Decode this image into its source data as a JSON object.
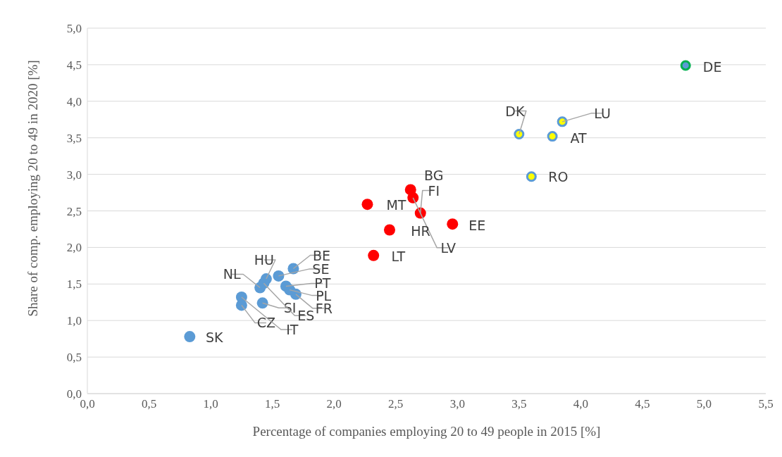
{
  "chart_data": {
    "type": "scatter",
    "xlabel": "Percentage of companies employing 20 to 49 people in 2015 [%]",
    "ylabel": "Share of comp. employing 20 to 49 in 2020 [%]",
    "xlim": [
      0,
      5.5
    ],
    "ylim": [
      0,
      5
    ],
    "xticks": [
      {
        "value": 0,
        "label": "0,0"
      },
      {
        "value": 0.5,
        "label": "0,5"
      },
      {
        "value": 1,
        "label": "1,0"
      },
      {
        "value": 1.5,
        "label": "1,5"
      },
      {
        "value": 2,
        "label": "2,0"
      },
      {
        "value": 2.5,
        "label": "2,5"
      },
      {
        "value": 3,
        "label": "3,0"
      },
      {
        "value": 3.5,
        "label": "3,5"
      },
      {
        "value": 4,
        "label": "4,0"
      },
      {
        "value": 4.5,
        "label": "4,5"
      },
      {
        "value": 5,
        "label": "5,0"
      },
      {
        "value": 5.5,
        "label": "5,5"
      }
    ],
    "yticks": [
      {
        "value": 0,
        "label": "0,0"
      },
      {
        "value": 0.5,
        "label": "0,5"
      },
      {
        "value": 1,
        "label": "1,0"
      },
      {
        "value": 1.5,
        "label": "1,5"
      },
      {
        "value": 2,
        "label": "2,0"
      },
      {
        "value": 2.5,
        "label": "2,5"
      },
      {
        "value": 3,
        "label": "3,0"
      },
      {
        "value": 3.5,
        "label": "3,5"
      },
      {
        "value": 4,
        "label": "4,0"
      },
      {
        "value": 4.5,
        "label": "4,5"
      },
      {
        "value": 5,
        "label": "5,0"
      }
    ],
    "grid": "y",
    "legend": false,
    "marker": "circle",
    "series": [
      {
        "color": "#5b9bd5",
        "x": [
          0.83,
          1.25,
          1.25,
          1.4,
          1.42,
          1.45,
          1.55,
          1.67,
          1.61,
          1.64,
          1.69,
          1.43
        ],
        "values": [
          0.78,
          1.21,
          1.32,
          1.45,
          1.24,
          1.57,
          1.61,
          1.71,
          1.47,
          1.42,
          1.36,
          1.51
        ]
      },
      {
        "color": "#ff0000",
        "x": [
          2.27,
          2.62,
          2.64,
          2.7,
          2.45,
          2.96,
          2.32
        ],
        "values": [
          2.59,
          2.79,
          2.68,
          2.47,
          2.24,
          2.32,
          1.89
        ]
      },
      {
        "color": "#ffff00",
        "x": [
          3.5,
          3.85,
          3.77,
          3.6
        ],
        "values": [
          3.55,
          3.72,
          3.52,
          2.97
        ]
      },
      {
        "color": "#5b9bd5",
        "x": [
          4.85
        ],
        "values": [
          4.49
        ]
      }
    ],
    "annotations": [
      {
        "text": "SK",
        "x": 0.83,
        "y": 0.78
      },
      {
        "text": "CZ",
        "x": 1.25,
        "y": 1.21
      },
      {
        "text": "IT",
        "x": 1.25,
        "y": 1.32
      },
      {
        "text": "NL",
        "x": 1.4,
        "y": 1.45
      },
      {
        "text": "SI",
        "x": 1.42,
        "y": 1.24
      },
      {
        "text": "HU",
        "x": 1.45,
        "y": 1.57
      },
      {
        "text": "SE",
        "x": 1.55,
        "y": 1.61
      },
      {
        "text": "BE",
        "x": 1.67,
        "y": 1.71
      },
      {
        "text": "PT",
        "x": 1.61,
        "y": 1.47
      },
      {
        "text": "PL",
        "x": 1.64,
        "y": 1.42
      },
      {
        "text": "FR",
        "x": 1.69,
        "y": 1.36
      },
      {
        "text": "ES",
        "x": 1.43,
        "y": 1.51
      },
      {
        "text": "MT",
        "x": 2.27,
        "y": 2.59
      },
      {
        "text": "BG",
        "x": 2.62,
        "y": 2.79
      },
      {
        "text": "LV",
        "x": 2.64,
        "y": 2.68
      },
      {
        "text": "FI",
        "x": 2.7,
        "y": 2.47
      },
      {
        "text": "HR",
        "x": 2.45,
        "y": 2.24
      },
      {
        "text": "EE",
        "x": 2.96,
        "y": 2.32
      },
      {
        "text": "LT",
        "x": 2.32,
        "y": 1.89
      },
      {
        "text": "DK",
        "x": 3.5,
        "y": 3.55
      },
      {
        "text": "LU",
        "x": 3.85,
        "y": 3.72
      },
      {
        "text": "AT",
        "x": 3.77,
        "y": 3.52
      },
      {
        "text": "RO",
        "x": 3.6,
        "y": 2.97
      },
      {
        "text": "DE",
        "x": 4.85,
        "y": 4.49
      }
    ]
  }
}
